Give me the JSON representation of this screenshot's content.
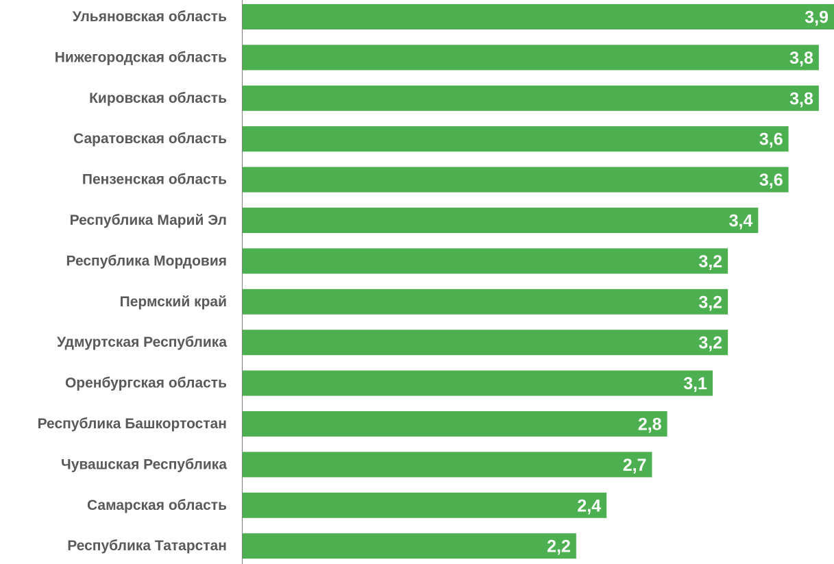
{
  "chart_data": {
    "type": "bar",
    "orientation": "horizontal",
    "title": "",
    "xlabel": "",
    "ylabel": "",
    "categories": [
      "Ульяновская область",
      "Нижегородская область",
      "Кировская область",
      "Саратовская область",
      "Пензенская область",
      "Республика Марий Эл",
      "Республика Мордовия",
      "Пермский край",
      "Удмуртская Республика",
      "Оренбургская область",
      "Республика Башкортостан",
      "Чувашская Республика",
      "Самарская область",
      "Республика Татарстан"
    ],
    "values": [
      3.9,
      3.8,
      3.8,
      3.6,
      3.6,
      3.4,
      3.2,
      3.2,
      3.2,
      3.1,
      2.8,
      2.7,
      2.4,
      2.2
    ],
    "value_labels": [
      "3,9",
      "3,8",
      "3,8",
      "3,6",
      "3,6",
      "3,4",
      "3,2",
      "3,2",
      "3,2",
      "3,1",
      "2,8",
      "2,7",
      "2,4",
      "2,2"
    ],
    "xlim": [
      0,
      3.9
    ],
    "grid": false,
    "legend": "none",
    "bar_color": "#4caf50",
    "axis_color": "#808080"
  }
}
